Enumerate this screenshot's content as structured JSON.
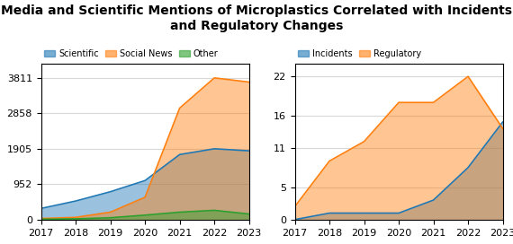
{
  "chart_data": [
    {
      "type": "area",
      "title": "Media and Scientific Mentions of Microplastics Correlated with Incidents and Regulatory Changes",
      "x": [
        2017,
        2018,
        2019,
        2020,
        2021,
        2022,
        2023
      ],
      "series": [
        {
          "name": "Scientific",
          "values": [
            300,
            500,
            750,
            1050,
            1750,
            1905,
            1850
          ]
        },
        {
          "name": "Social News",
          "values": [
            30,
            60,
            200,
            600,
            3000,
            3811,
            3700
          ]
        },
        {
          "name": "Other",
          "values": [
            10,
            20,
            50,
            120,
            200,
            250,
            150
          ]
        }
      ],
      "xlim": [
        2017,
        2023
      ],
      "xticks": [
        2017,
        2018,
        2019,
        2020,
        2021,
        2022,
        2023
      ],
      "ylim": [
        0,
        4200
      ],
      "yticks": [
        0,
        952,
        1905,
        2858,
        3811
      ],
      "grid": true
    },
    {
      "type": "area",
      "x": [
        2017,
        2018,
        2019,
        2020,
        2021,
        2022,
        2023
      ],
      "series": [
        {
          "name": "Incidents",
          "values": [
            0,
            1,
            1,
            1,
            3,
            8,
            15
          ]
        },
        {
          "name": "Regulatory",
          "values": [
            2,
            9,
            12,
            18,
            18,
            22,
            14
          ]
        }
      ],
      "xlim": [
        2017,
        2023
      ],
      "xticks": [
        2017,
        2018,
        2019,
        2020,
        2021,
        2022,
        2023
      ],
      "ylim": [
        0,
        24
      ],
      "yticks": [
        0,
        5,
        11,
        16,
        22
      ],
      "grid": true
    }
  ]
}
